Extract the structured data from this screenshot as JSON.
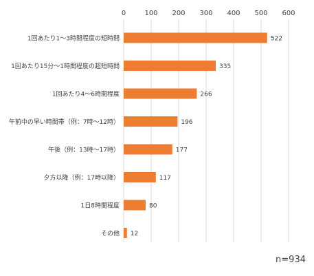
{
  "chart_data": {
    "type": "bar",
    "orientation": "horizontal",
    "categories": [
      "1回あたり1～3時間程度の短時間",
      "1回あたり15分～1時間程度の超短時間",
      "1回あたり4～6時間程度",
      "午前中の早い時間帯（例：7時～12時）",
      "午後（例：13時～17時）",
      "夕方以降（例：17時以降）",
      "1日8時間程度",
      "その他"
    ],
    "values": [
      522,
      335,
      266,
      196,
      177,
      117,
      80,
      12
    ],
    "xlim": [
      0,
      600
    ],
    "x_ticks": [
      0,
      100,
      200,
      300,
      400,
      500,
      600
    ],
    "x_axis_position": "top",
    "grid": true,
    "legend": "none",
    "colors": {
      "bar": "#ED7D31",
      "grid": "#D9D9D9",
      "text": "#404040"
    },
    "annotation": "n=934"
  }
}
